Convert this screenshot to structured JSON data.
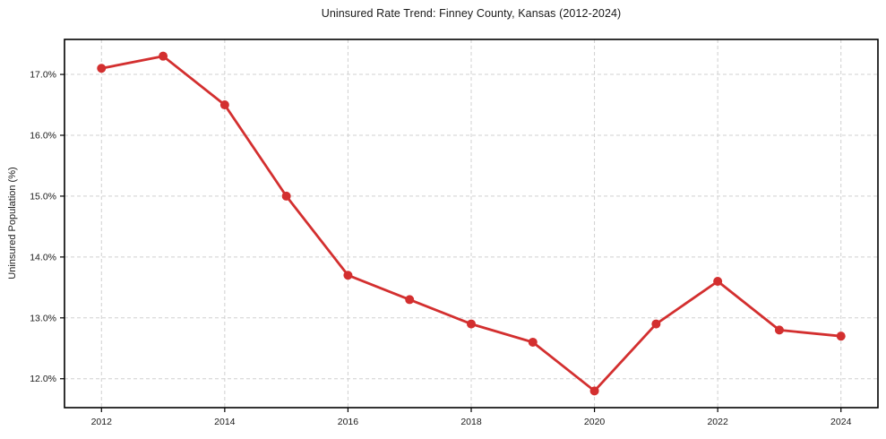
{
  "chart_data": {
    "type": "line",
    "title": "Uninsured Rate Trend: Finney County, Kansas (2012-2024)",
    "ylabel": "Uninsured Population (%)",
    "xlabel": "",
    "x": [
      2012,
      2013,
      2014,
      2015,
      2016,
      2017,
      2018,
      2019,
      2020,
      2021,
      2022,
      2023,
      2024
    ],
    "values": [
      17.1,
      17.3,
      16.5,
      15.0,
      13.7,
      13.3,
      12.9,
      12.6,
      11.8,
      12.9,
      13.6,
      12.8,
      12.7
    ],
    "xlim": [
      2011.4,
      2024.6
    ],
    "ylim": [
      11.525,
      17.575
    ],
    "xticks": {
      "values": [
        2012,
        2014,
        2016,
        2018,
        2020,
        2022,
        2024
      ],
      "labels": [
        "2012",
        "2014",
        "2016",
        "2018",
        "2020",
        "2022",
        "2024"
      ]
    },
    "yticks": {
      "values": [
        12,
        13,
        14,
        15,
        16,
        17
      ],
      "labels": [
        "12.0%",
        "13.0%",
        "14.0%",
        "15.0%",
        "16.0%",
        "17.0%"
      ]
    },
    "grid": true,
    "legend_position": "none",
    "line_color": "#d32f2f",
    "marker": "circle",
    "grid_color": "#d0d0d0",
    "axis_color": "#000000",
    "background_color": "#ffffff"
  }
}
